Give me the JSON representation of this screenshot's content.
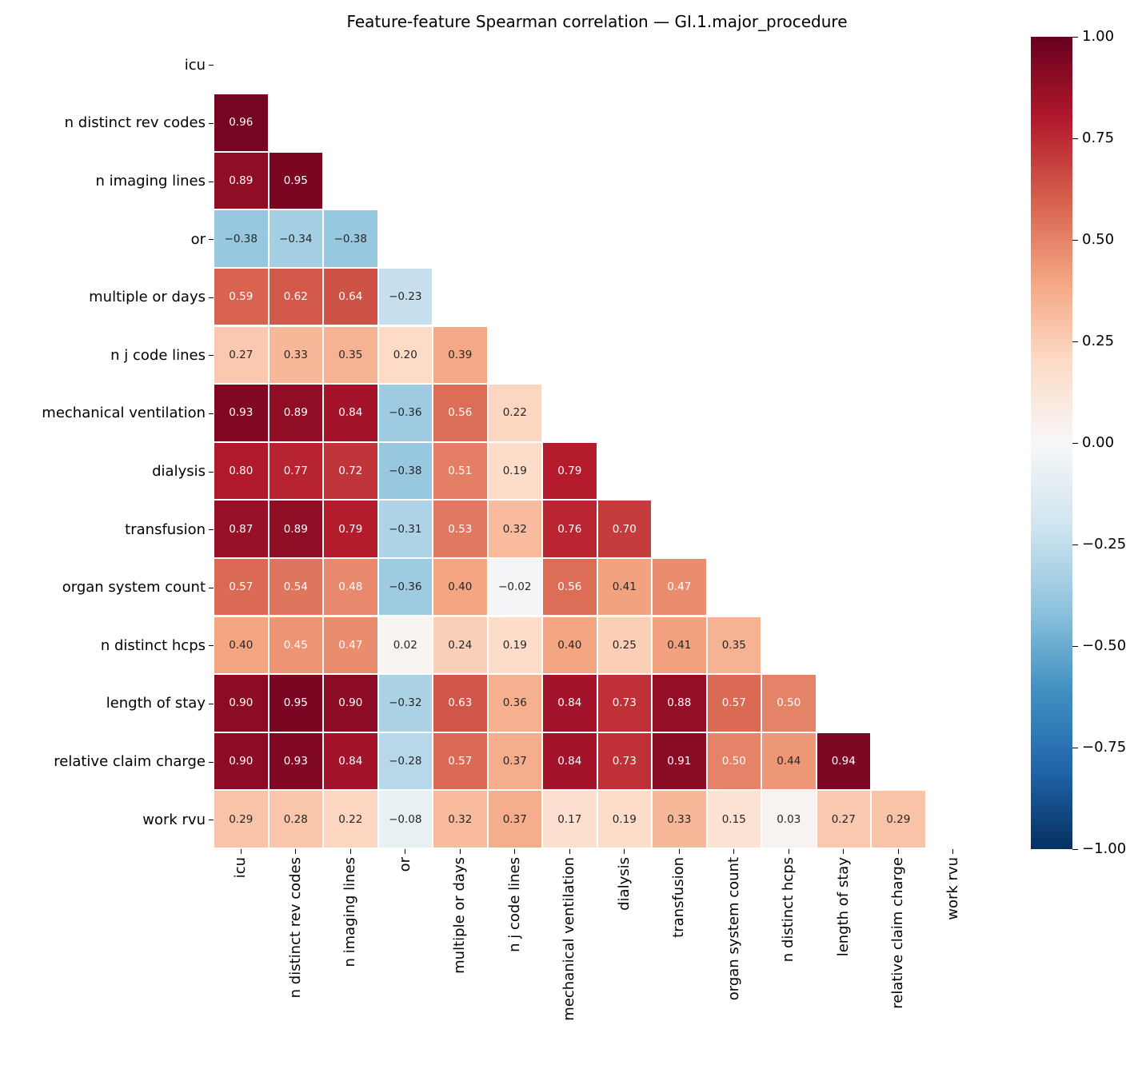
{
  "title": "Feature-feature Spearman correlation — GI.1.major_procedure",
  "colors": {
    "background": "#ffffff",
    "annotation_dark": "#262626",
    "annotation_light": "#ffffff",
    "axis_text": "#000000",
    "cell_border": "#ffffff"
  },
  "chart_data": {
    "type": "heatmap",
    "variant": "lower_triangle_correlation_matrix",
    "title": "Feature-feature Spearman correlation — GI.1.major_procedure",
    "features": [
      "icu",
      "n distinct rev codes",
      "n imaging lines",
      "or",
      "multiple or days",
      "n j code lines",
      "mechanical ventilation",
      "dialysis",
      "transfusion",
      "organ system count",
      "n distinct hcps",
      "length of stay",
      "relative claim charge",
      "work rvu"
    ],
    "rows": [
      {
        "feature": "n distinct rev codes",
        "values": [
          0.96
        ]
      },
      {
        "feature": "n imaging lines",
        "values": [
          0.89,
          0.95
        ]
      },
      {
        "feature": "or",
        "values": [
          -0.38,
          -0.34,
          -0.38
        ]
      },
      {
        "feature": "multiple or days",
        "values": [
          0.59,
          0.62,
          0.64,
          -0.23
        ]
      },
      {
        "feature": "n j code lines",
        "values": [
          0.27,
          0.33,
          0.35,
          0.2,
          0.39
        ]
      },
      {
        "feature": "mechanical ventilation",
        "values": [
          0.93,
          0.89,
          0.84,
          -0.36,
          0.56,
          0.22
        ]
      },
      {
        "feature": "dialysis",
        "values": [
          0.8,
          0.77,
          0.72,
          -0.38,
          0.51,
          0.19,
          0.79
        ]
      },
      {
        "feature": "transfusion",
        "values": [
          0.87,
          0.89,
          0.79,
          -0.31,
          0.53,
          0.32,
          0.76,
          0.7
        ]
      },
      {
        "feature": "organ system count",
        "values": [
          0.57,
          0.54,
          0.48,
          -0.36,
          0.4,
          -0.02,
          0.56,
          0.41,
          0.47
        ]
      },
      {
        "feature": "n distinct hcps",
        "values": [
          0.4,
          0.45,
          0.47,
          0.02,
          0.24,
          0.19,
          0.4,
          0.25,
          0.41,
          0.35
        ]
      },
      {
        "feature": "length of stay",
        "values": [
          0.9,
          0.95,
          0.9,
          -0.32,
          0.63,
          0.36,
          0.84,
          0.73,
          0.88,
          0.57,
          0.5
        ]
      },
      {
        "feature": "relative claim charge",
        "values": [
          0.9,
          0.93,
          0.84,
          -0.28,
          0.57,
          0.37,
          0.84,
          0.73,
          0.91,
          0.5,
          0.44,
          0.94
        ]
      },
      {
        "feature": "work rvu",
        "values": [
          0.29,
          0.28,
          0.22,
          -0.08,
          0.32,
          0.37,
          0.17,
          0.19,
          0.33,
          0.15,
          0.03,
          0.27,
          0.29
        ]
      }
    ],
    "annotation_decimals": 2,
    "colorbar": {
      "position": "right",
      "vmin": -1.0,
      "vmax": 1.0,
      "ticks": [
        1.0,
        0.75,
        0.5,
        0.25,
        0.0,
        -0.25,
        -0.5,
        -0.75,
        -1.0
      ],
      "tick_labels": [
        "1.00",
        "0.75",
        "0.50",
        "0.25",
        "0.00",
        "−0.25",
        "−0.50",
        "−0.75",
        "−1.00"
      ],
      "colormap": "RdBu_r",
      "colormap_stops_low_to_high": [
        "#053061",
        "#2166ac",
        "#4393c3",
        "#92c5de",
        "#d1e5f0",
        "#f7f7f7",
        "#fddbc7",
        "#f4a582",
        "#d6604d",
        "#b2182b",
        "#67001f"
      ]
    },
    "grid": false
  }
}
